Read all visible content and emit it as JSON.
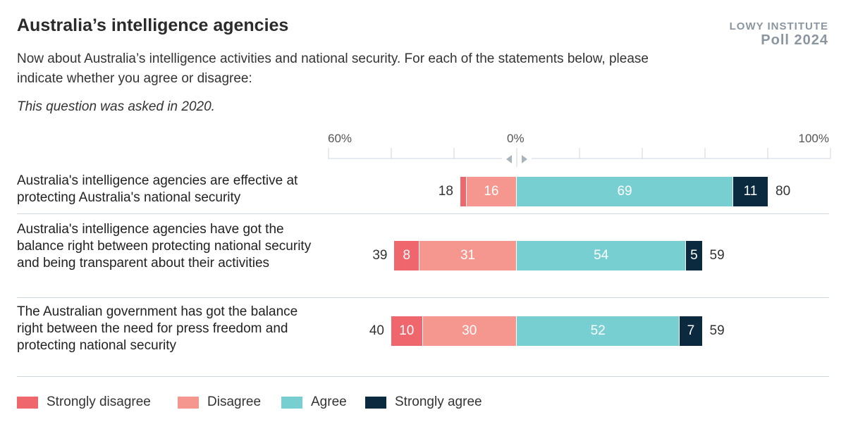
{
  "title": "Australia’s intelligence agencies",
  "brand": {
    "line1": "LOWY INSTITUTE",
    "line2": "Poll 2024"
  },
  "subtitle": "Now about Australia’s intelligence activities and national security. For each of the statements below, please indicate whether you agree or disagree:",
  "note": "This question was asked in 2020.",
  "colors": {
    "strongly_disagree": "#f0666d",
    "disagree": "#f5978f",
    "agree": "#78cfd2",
    "strongly_agree": "#0b2a3f"
  },
  "chart_data": {
    "type": "bar",
    "orientation": "horizontal",
    "stacked": "diverging",
    "axis": {
      "tick_labels": [
        "60%",
        "0%",
        "100%"
      ],
      "range": [
        -60,
        100
      ]
    },
    "categories": [
      "Australia's intelligence agencies are effective at protecting Australia's national security",
      "Australia's intelligence agencies have got the balance right between protecting national security and being transparent about their activities",
      "The Australian government has got the balance right between the need for press freedom and protecting national security"
    ],
    "series": [
      {
        "name": "Strongly disagree",
        "values": [
          2,
          8,
          10
        ],
        "labels": [
          "",
          "8",
          "10"
        ]
      },
      {
        "name": "Disagree",
        "values": [
          16,
          31,
          30
        ]
      },
      {
        "name": "Agree",
        "values": [
          69,
          54,
          52
        ]
      },
      {
        "name": "Strongly agree",
        "values": [
          11,
          5,
          7
        ]
      }
    ],
    "totals_disagree": [
      18,
      39,
      40
    ],
    "totals_agree": [
      80,
      59,
      59
    ]
  }
}
